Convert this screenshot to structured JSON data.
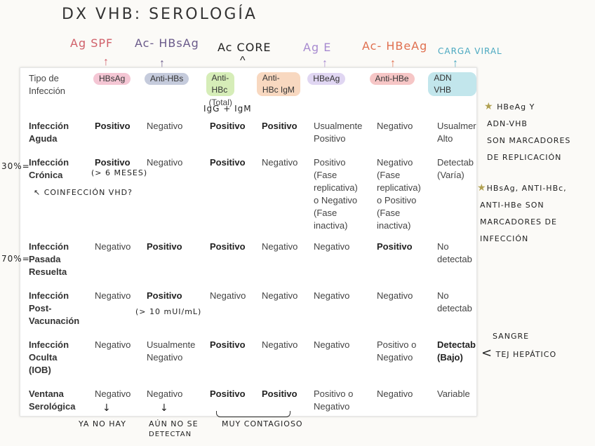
{
  "title": "DX VHB: SEROLOGÍA",
  "top_labels": [
    {
      "text": "Ag SPF",
      "color": "#d0606a"
    },
    {
      "text": "Ac- HBsAg",
      "color": "#6a5a8a"
    },
    {
      "text": "Ac CORE",
      "color": "#222222"
    },
    {
      "text": "Ag E",
      "color": "#a78ad0"
    },
    {
      "text": "Ac- HBeAg",
      "color": "#e07050"
    },
    {
      "text": "CARGA VIRAL",
      "color": "#4aa8c0"
    }
  ],
  "header": {
    "tipo": [
      "Tipo de",
      "Infección"
    ],
    "pills": [
      {
        "lines": [
          "HBsAg"
        ],
        "color": "#f4c6d4"
      },
      {
        "lines": [
          "Anti-HBs"
        ],
        "color": "#c5cbdc"
      },
      {
        "lines": [
          "Anti-",
          "HBc"
        ],
        "color": "#d6edb8",
        "extra": "(Total)"
      },
      {
        "lines": [
          "Anti-",
          "HBc IgM"
        ],
        "color": "#f8d8c0"
      },
      {
        "lines": [
          "HBeAg"
        ],
        "color": "#e0d6f2"
      },
      {
        "lines": [
          "Anti-HBe"
        ],
        "color": "#f6c6c6"
      },
      {
        "lines": [
          "ADN VHB"
        ],
        "color": "#c2e6ec"
      }
    ]
  },
  "rows": [
    {
      "label": [
        "Infección",
        "Aguda"
      ],
      "cells": [
        [
          "Positivo"
        ],
        [
          "Negativo"
        ],
        [
          "Positivo"
        ],
        [
          "Positivo"
        ],
        [
          "Usualmente",
          "Positivo"
        ],
        [
          "Negativo"
        ],
        [
          "Usualmer",
          "Alto"
        ]
      ],
      "bold": [
        true,
        false,
        true,
        true,
        false,
        false,
        false
      ]
    },
    {
      "label": [
        "Infección",
        "Crónica"
      ],
      "cells": [
        [
          "Positivo"
        ],
        [
          "Negativo"
        ],
        [
          "Positivo"
        ],
        [
          "Negativo"
        ],
        [
          "Positivo",
          "(Fase",
          "replicativa)",
          "o Negativo",
          "(Fase",
          "inactiva)"
        ],
        [
          "Negativo",
          "(Fase",
          "replicativa)",
          "o Positivo",
          "(Fase",
          "inactiva)"
        ],
        [
          "Detectab",
          "(Varía)"
        ]
      ],
      "bold": [
        true,
        false,
        true,
        false,
        false,
        false,
        false
      ]
    },
    {
      "label": [
        "Infección",
        "Pasada",
        "Resuelta"
      ],
      "cells": [
        [
          "Negativo"
        ],
        [
          "Positivo"
        ],
        [
          "Positivo"
        ],
        [
          "Negativo"
        ],
        [
          "Negativo"
        ],
        [
          "Positivo"
        ],
        [
          "No",
          "detectab"
        ]
      ],
      "bold": [
        false,
        true,
        true,
        false,
        false,
        true,
        false
      ]
    },
    {
      "label": [
        "Infección",
        "Post-",
        "Vacunación"
      ],
      "cells": [
        [
          "Negativo"
        ],
        [
          "Positivo"
        ],
        [
          "Negativo"
        ],
        [
          "Negativo"
        ],
        [
          "Negativo"
        ],
        [
          "Negativo"
        ],
        [
          "No",
          "detectab"
        ]
      ],
      "bold": [
        false,
        true,
        false,
        false,
        false,
        false,
        false
      ]
    },
    {
      "label": [
        "Infección",
        "Oculta",
        "(IOB)"
      ],
      "cells": [
        [
          "Negativo"
        ],
        [
          "Usualmente",
          "Negativo"
        ],
        [
          "Positivo"
        ],
        [
          "Negativo"
        ],
        [
          "Negativo"
        ],
        [
          "Positivo o",
          "Negativo"
        ],
        [
          "Detectab",
          "(Bajo)"
        ]
      ],
      "bold": [
        false,
        false,
        true,
        false,
        false,
        false,
        true
      ]
    },
    {
      "label": [
        "Ventana",
        "Serológica"
      ],
      "cells": [
        [
          "Negativo"
        ],
        [
          "Negativo"
        ],
        [
          "Positivo"
        ],
        [
          "Positivo"
        ],
        [
          "Positivo o",
          "Negativo"
        ],
        [
          "Negativo"
        ],
        [
          "Variable"
        ]
      ],
      "bold": [
        false,
        false,
        true,
        true,
        false,
        false,
        false
      ]
    }
  ],
  "annotations": {
    "igg_igm": "IgG + IgM",
    "gt6": "(> 6 MESES)",
    "coinf": "COINFECCIÓN VHD?",
    "gt10": "(> 10 mUI/mL)",
    "pct30": "30%",
    "pct70": "70%",
    "ya_no_hay": "YA NO HAY",
    "aun_no": [
      "AÚN NO SE",
      "DETECTAN"
    ],
    "muy_contagioso": "MUY CONTAGIOSO",
    "side1": [
      "HBeAg Y",
      "ADN-VHB",
      "SON MARCADORES",
      "DE REPLICACIÓN"
    ],
    "side2": [
      "HBsAg, ANTI-HBc,",
      "ANTI-HBe SON",
      "MARCADORES DE",
      "INFECCIÓN"
    ],
    "side3": [
      "SANGRE",
      "TEJ HEPÁTICO"
    ]
  }
}
